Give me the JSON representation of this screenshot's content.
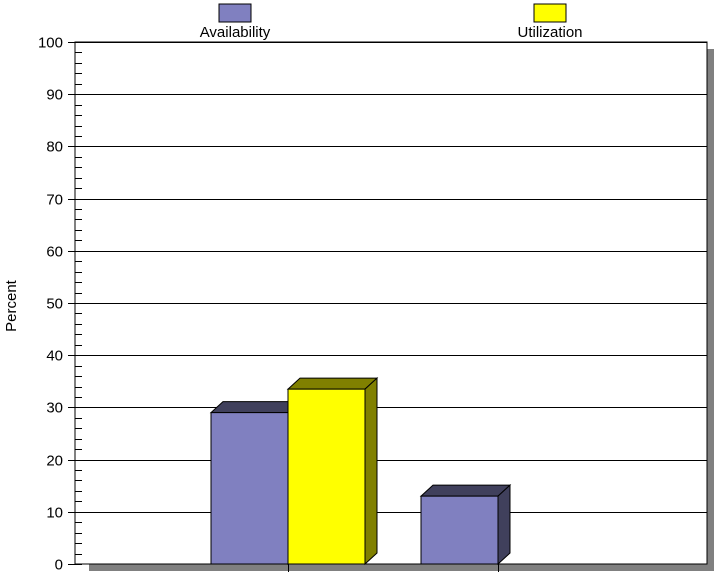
{
  "chart_data": {
    "type": "bar",
    "categories": [
      "",
      ""
    ],
    "series": [
      {
        "name": "Availability",
        "values": [
          29,
          13
        ]
      },
      {
        "name": "Utilization",
        "values": [
          33.5,
          null
        ]
      }
    ],
    "ylabel": "Percent",
    "ylim": [
      0,
      100
    ],
    "yticks": [
      "0",
      "10",
      "20",
      "30",
      "40",
      "50",
      "60",
      "70",
      "80",
      "90",
      "100"
    ],
    "grid": true,
    "legend_placement": "top",
    "style": "3d",
    "colors": {
      "Availability": "#8080C0",
      "Utilization": "#FFFF00",
      "Availability_dark": "#40405C",
      "Utilization_dark": "#808000",
      "shadow": "#808080"
    }
  }
}
